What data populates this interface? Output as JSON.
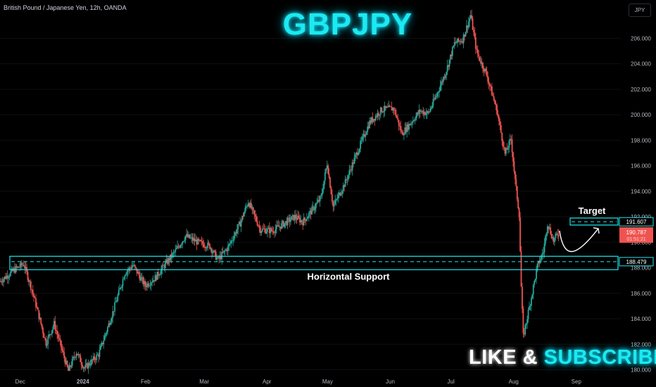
{
  "header": {
    "symbol": "British Pound / Japanese Yen, 12h, OANDA",
    "title": "GBPJPY",
    "currency": "JPY"
  },
  "cta": {
    "like": "LIKE &",
    "subscribe": "SUBSCRIBE"
  },
  "colors": {
    "up": "#26a69a",
    "down": "#ef5350",
    "accent": "#1de9f0",
    "axis_text": "#b2b5be",
    "background": "#000000"
  },
  "chart_data": {
    "type": "candlestick",
    "instrument": "GBPJPY",
    "timeframe": "12h",
    "x_tick_labels": [
      "Dec",
      "2024",
      "Feb",
      "Mar",
      "Apr",
      "May",
      "Jun",
      "Jul",
      "Aug",
      "Sep"
    ],
    "x_tick_dates": [
      "2023-12-01",
      "2024-01-01",
      "2024-02-01",
      "2024-03-01",
      "2024-04-01",
      "2024-05-01",
      "2024-06-01",
      "2024-07-01",
      "2024-08-01",
      "2024-09-01"
    ],
    "y_ticks": [
      "180.000",
      "182.000",
      "184.000",
      "186.000",
      "188.000",
      "190.000",
      "192.000",
      "194.000",
      "196.000",
      "198.000",
      "200.000",
      "202.000",
      "204.000",
      "206.000"
    ],
    "ylim": [
      179.2,
      209.0
    ],
    "xlim": [
      "2023-11-21",
      "2024-09-23"
    ],
    "price_path": [
      [
        "2023-11-21",
        186.9
      ],
      [
        "2023-11-28",
        187.8
      ],
      [
        "2023-12-03",
        188.3
      ],
      [
        "2023-12-07",
        186.3
      ],
      [
        "2023-12-14",
        182.1
      ],
      [
        "2023-12-18",
        183.6
      ],
      [
        "2023-12-25",
        179.9
      ],
      [
        "2023-12-29",
        181.4
      ],
      [
        "2024-01-02",
        180.1
      ],
      [
        "2024-01-09",
        181.2
      ],
      [
        "2024-01-16",
        184.5
      ],
      [
        "2024-01-22",
        187.6
      ],
      [
        "2024-01-26",
        188.2
      ],
      [
        "2024-02-01",
        186.6
      ],
      [
        "2024-02-06",
        187.2
      ],
      [
        "2024-02-12",
        188.5
      ],
      [
        "2024-02-16",
        189.3
      ],
      [
        "2024-02-21",
        190.5
      ],
      [
        "2024-02-27",
        190.0
      ],
      [
        "2024-03-04",
        189.7
      ],
      [
        "2024-03-08",
        188.6
      ],
      [
        "2024-03-13",
        189.6
      ],
      [
        "2024-03-19",
        191.5
      ],
      [
        "2024-03-23",
        193.2
      ],
      [
        "2024-03-29",
        191.0
      ],
      [
        "2024-04-04",
        190.9
      ],
      [
        "2024-04-09",
        191.4
      ],
      [
        "2024-04-15",
        192.0
      ],
      [
        "2024-04-19",
        191.6
      ],
      [
        "2024-04-24",
        192.6
      ],
      [
        "2024-04-28",
        193.5
      ],
      [
        "2024-05-01",
        196.2
      ],
      [
        "2024-05-04",
        192.8
      ],
      [
        "2024-05-10",
        194.7
      ],
      [
        "2024-05-16",
        197.1
      ],
      [
        "2024-05-22",
        199.4
      ],
      [
        "2024-05-28",
        200.4
      ],
      [
        "2024-06-03",
        200.5
      ],
      [
        "2024-06-07",
        198.5
      ],
      [
        "2024-06-11",
        199.3
      ],
      [
        "2024-06-16",
        200.3
      ],
      [
        "2024-06-20",
        200.1
      ],
      [
        "2024-06-24",
        201.5
      ],
      [
        "2024-06-29",
        203.5
      ],
      [
        "2024-07-03",
        205.6
      ],
      [
        "2024-07-07",
        205.9
      ],
      [
        "2024-07-11",
        207.8
      ],
      [
        "2024-07-14",
        204.9
      ],
      [
        "2024-07-19",
        203.1
      ],
      [
        "2024-07-24",
        200.3
      ],
      [
        "2024-07-28",
        196.9
      ],
      [
        "2024-07-31",
        198.1
      ],
      [
        "2024-08-02",
        194.8
      ],
      [
        "2024-08-04",
        192.2
      ],
      [
        "2024-08-05",
        186.5
      ],
      [
        "2024-08-06",
        182.6
      ],
      [
        "2024-08-09",
        184.9
      ],
      [
        "2024-08-13",
        188.1
      ],
      [
        "2024-08-16",
        189.3
      ],
      [
        "2024-08-18",
        191.5
      ],
      [
        "2024-08-21",
        190.1
      ],
      [
        "2024-08-23",
        190.7
      ]
    ],
    "levels": [
      {
        "name": "Target",
        "price": 191.607,
        "label": "191.607",
        "zone": [
          191.35,
          191.9
        ]
      },
      {
        "name": "Horizontal Support",
        "price": 188.479,
        "label": "188.479",
        "zone": [
          187.85,
          188.9
        ]
      }
    ],
    "current_price": {
      "value": 190.787,
      "label": "190.787",
      "countdown": "01:51:21"
    },
    "annotations": [
      "Target",
      "Horizontal Support"
    ]
  }
}
